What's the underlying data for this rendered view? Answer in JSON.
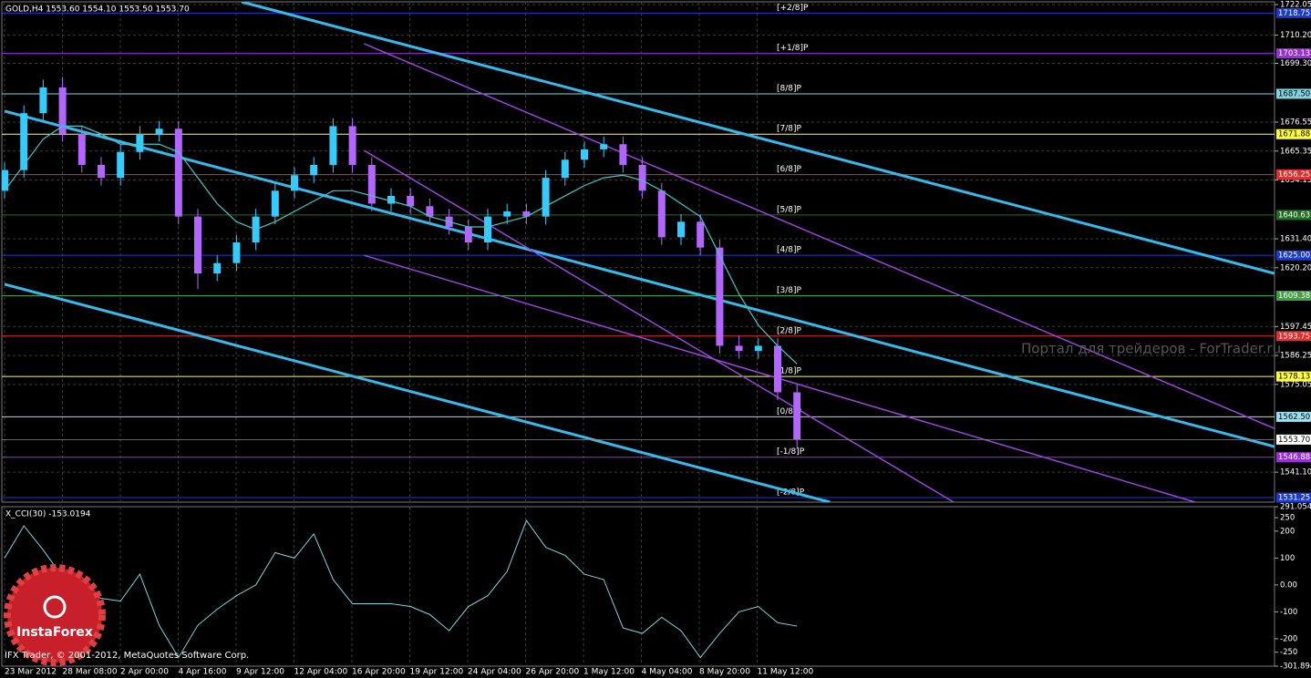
{
  "chart_data": [
    {
      "type": "candlestick",
      "title": "GOLD,H4  1553.60 1554.10 1553.50 1553.70",
      "ylim": [
        1529.5,
        1723.1
      ],
      "yticks": [
        1722.05,
        {
          "value": 1710.2,
          "label": "1710.20"
        },
        {
          "value": 1699.3,
          "label": "1699.30"
        },
        1676.55,
        1665.35,
        1654.15,
        {
          "value": 1631.4,
          "label": "1631.40"
        },
        {
          "value": 1620.2,
          "label": "1620.20"
        },
        1597.45,
        1586.25,
        1575.05,
        {
          "value": 1541.1,
          "label": "1541.10"
        }
      ],
      "grid": true,
      "x_labels": [
        "23 Mar 2012",
        "28 Mar 08:00",
        "2 Apr 00:00",
        "4 Apr 16:00",
        "9 Apr 12:00",
        "12 Apr 04:00",
        "16 Apr 20:00",
        "19 Apr 12:00",
        "24 Apr 04:00",
        "26 Apr 20:00",
        "1 May 12:00",
        "4 May 04:00",
        "8 May 20:00",
        "11 May 12:00"
      ],
      "up_color": "#33ccff",
      "down_color": "#b266ff",
      "open": [
        1650,
        1658,
        1680,
        1690,
        1672,
        1660,
        1655,
        1665,
        1672,
        1674,
        1640,
        1618,
        1622,
        1630,
        1640,
        1650,
        1656,
        1660,
        1675,
        1660,
        1645,
        1648,
        1644,
        1640,
        1636,
        1630,
        1640,
        1642,
        1640,
        1655,
        1662,
        1666,
        1668,
        1660,
        1650,
        1632,
        1638,
        1628,
        1590,
        1588,
        1590,
        1572
      ],
      "high": [
        1661,
        1683,
        1693,
        1694,
        1675,
        1663,
        1668,
        1675,
        1677,
        1677,
        1643,
        1625,
        1633,
        1643,
        1653,
        1659,
        1663,
        1678,
        1678,
        1663,
        1651,
        1651,
        1647,
        1643,
        1639,
        1643,
        1645,
        1645,
        1658,
        1665,
        1669,
        1671,
        1671,
        1663,
        1653,
        1641,
        1641,
        1631,
        1594,
        1593,
        1593,
        1575
      ],
      "low": [
        1647,
        1655,
        1677,
        1669,
        1657,
        1652,
        1652,
        1662,
        1669,
        1637,
        1612,
        1615,
        1619,
        1627,
        1637,
        1647,
        1653,
        1657,
        1657,
        1642,
        1642,
        1641,
        1637,
        1633,
        1627,
        1627,
        1637,
        1637,
        1637,
        1652,
        1659,
        1663,
        1657,
        1647,
        1629,
        1629,
        1625,
        1587,
        1585,
        1585,
        1569,
        1550
      ],
      "close": [
        1658,
        1680,
        1690,
        1672,
        1660,
        1655,
        1665,
        1672,
        1674,
        1640,
        1618,
        1622,
        1630,
        1640,
        1650,
        1656,
        1660,
        1675,
        1660,
        1645,
        1648,
        1644,
        1640,
        1636,
        1630,
        1640,
        1642,
        1640,
        1655,
        1662,
        1666,
        1668,
        1660,
        1650,
        1632,
        1638,
        1628,
        1590,
        1588,
        1590,
        1572,
        1553.7
      ],
      "ma": {
        "color": "#40c8c8",
        "values": [
          1650,
          1660,
          1670,
          1675,
          1675,
          1672,
          1668,
          1668,
          1668,
          1665,
          1655,
          1645,
          1638,
          1635,
          1638,
          1642,
          1646,
          1650,
          1650,
          1648,
          1646,
          1644,
          1640,
          1638,
          1636,
          1636,
          1638,
          1640,
          1644,
          1648,
          1652,
          1655,
          1656,
          1654,
          1650,
          1645,
          1640,
          1625,
          1610,
          1598,
          1590,
          1583
        ]
      },
      "current_price": {
        "value": 1553.7,
        "label": "1553.70"
      },
      "levels": [
        {
          "name": "[+2/8]P",
          "value": 1718.75,
          "label": "1718.75",
          "color": "#1a3cd0"
        },
        {
          "name": "[+1/8]P",
          "value": 1703.13,
          "label": "1703.13",
          "color": "#9a30d8"
        },
        {
          "name": "[8/8]P",
          "value": 1687.5,
          "label": "1687.50",
          "color": "#7fd4e0"
        },
        {
          "name": "[7/8]P",
          "value": 1671.88,
          "label": "1671.88",
          "color": "#ffff40"
        },
        {
          "name": "[6/8]P",
          "value": 1656.25,
          "label": "1656.25",
          "color": "#e03030"
        },
        {
          "name": "[5/8]P",
          "value": 1640.63,
          "label": "1640.63",
          "color": "#207020"
        },
        {
          "name": "[4/8]P",
          "value": 1625.0,
          "label": "1625.00",
          "color": "#1a3cd0"
        },
        {
          "name": "[3/8]P",
          "value": 1609.38,
          "label": "1609.38",
          "color": "#40a040"
        },
        {
          "name": "[2/8]P",
          "value": 1593.75,
          "label": "1593.75",
          "color": "#e03030"
        },
        {
          "name": "[1/8]P",
          "value": 1578.13,
          "label": "1578.13",
          "color": "#ffff40"
        },
        {
          "name": "[0/8]P",
          "value": 1562.5,
          "label": "1562.50",
          "color": "#9fe0f0"
        },
        {
          "name": "[-1/8]P",
          "value": 1546.88,
          "label": "1546.88",
          "color": "#9a30d8"
        },
        {
          "name": "[-2/8]P",
          "value": 1531.25,
          "label": "1531.25",
          "color": "#1a3cd0"
        }
      ],
      "trendlines": [
        {
          "color": "#33bbee",
          "width": 3,
          "start": [
            12.26,
            1723.1
          ],
          "end": [
            65.7,
            1618.0
          ]
        },
        {
          "color": "#33bbee",
          "width": 3,
          "start": [
            0,
            1680.8
          ],
          "end": [
            65.7,
            1551.0
          ]
        },
        {
          "color": "#33bbee",
          "width": 3,
          "start": [
            0,
            1613.8
          ],
          "end": [
            42.7,
            1529.5
          ]
        },
        {
          "color": "#9a44dd",
          "width": 1.5,
          "start": [
            18.6,
            1706.9
          ],
          "end": [
            65.7,
            1558.0
          ]
        },
        {
          "color": "#9a44dd",
          "width": 1.5,
          "start": [
            18.6,
            1665.6
          ],
          "end": [
            49.1,
            1529.5
          ]
        },
        {
          "color": "#9a44dd",
          "width": 1.5,
          "start": [
            18.6,
            1625.0
          ],
          "end": [
            61.6,
            1529.5
          ]
        }
      ]
    },
    {
      "type": "line",
      "title": "X_CCI(30) -153.0194",
      "color": "#7fd4e0",
      "ylim": [
        -301.894,
        291.054
      ],
      "yticks": [
        291.054,
        250,
        200,
        100,
        {
          "value": 0,
          "label": "0.00"
        },
        -100,
        -200,
        -250,
        -301.894
      ],
      "values": [
        100,
        220,
        130,
        30,
        -20,
        -50,
        -60,
        40,
        -150,
        -270,
        -150,
        -90,
        -40,
        0,
        120,
        100,
        190,
        20,
        -70,
        -70,
        -70,
        -80,
        -110,
        -170,
        -80,
        -40,
        50,
        240,
        140,
        110,
        40,
        20,
        -160,
        -180,
        -120,
        -170,
        -270,
        -180,
        -100,
        -80,
        -140,
        -153.0194
      ]
    }
  ],
  "overlay": {
    "watermark": "Портал для трейдеров - ForTrader.ru",
    "copyright": "IFX Trader, © 2001-2012, MetaQuotes Software Corp.",
    "logo": "InstaForex"
  }
}
